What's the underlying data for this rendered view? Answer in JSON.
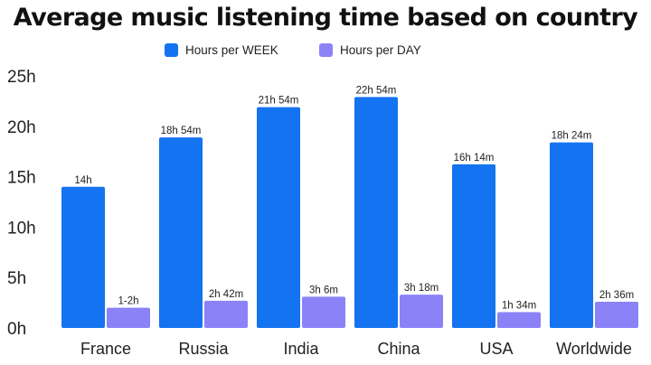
{
  "chart_data": {
    "type": "bar",
    "title": "Average music listening time based on country",
    "categories": [
      "France",
      "Russia",
      "India",
      "China",
      "USA",
      "Worldwide"
    ],
    "series": [
      {
        "name": "Hours per WEEK",
        "color": "#1473f0",
        "values": [
          14,
          18.9,
          21.9,
          22.9,
          16.23,
          18.4
        ],
        "labels": [
          "14h",
          "18h 54m",
          "21h 54m",
          "22h 54m",
          "16h 14m",
          "18h 24m"
        ]
      },
      {
        "name": "Hours per DAY",
        "color": "#8b82f8",
        "values": [
          2,
          2.7,
          3.1,
          3.3,
          1.57,
          2.6
        ],
        "labels": [
          "1-2h",
          "2h 42m",
          "3h 6m",
          "3h 18m",
          "1h 34m",
          "2h 36m"
        ]
      }
    ],
    "yticks": [
      "0h",
      "5h",
      "10h",
      "15h",
      "20h",
      "25h"
    ],
    "ylim": [
      0,
      25
    ],
    "grid": false,
    "legend_position": "top-center"
  }
}
